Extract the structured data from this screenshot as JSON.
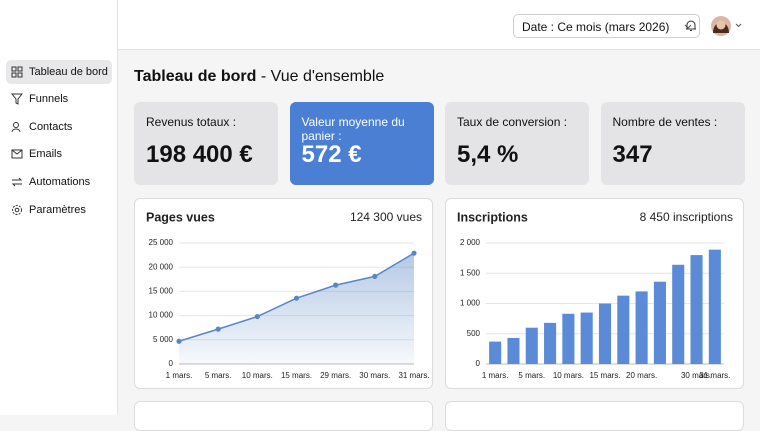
{
  "topbar": {
    "date_filter": "Date : Ce mois (mars 2026)"
  },
  "sidebar": {
    "items": [
      "Tableau de bord",
      "Funnels",
      "Contacts",
      "Emails",
      "Automations",
      "Paramètres"
    ]
  },
  "page": {
    "title": "Tableau de bord",
    "subtitle": "- Vue d'ensemble"
  },
  "kpis": [
    {
      "label": "Revenus totaux :",
      "value": "198 400 €"
    },
    {
      "label": "Valeur moyenne du panier :",
      "value": "572 €"
    },
    {
      "label": "Taux de conversion :",
      "value": "5,4 %"
    },
    {
      "label": "Nombre de ventes :",
      "value": "347"
    }
  ],
  "chart_data": [
    {
      "type": "line",
      "title": "Pages vues",
      "total": "124 300 vues",
      "color": "#5b86c5",
      "categories": [
        "1 mars.",
        "5 mars.",
        "10 mars.",
        "15 mars.",
        "29 mars.",
        "30 mars.",
        "31 mars."
      ],
      "values": [
        4700,
        7200,
        9800,
        13600,
        16300,
        18100,
        22900
      ],
      "ylim": [
        0,
        25000
      ],
      "yticks": [
        0,
        {
          "value": 5000,
          "label": "5 000"
        },
        {
          "value": 10000,
          "label": "10 000"
        },
        {
          "value": 15000,
          "label": "15 000"
        },
        {
          "value": 20000,
          "label": "20 000"
        },
        {
          "value": 25000,
          "label": "25 000"
        }
      ],
      "grid": true
    },
    {
      "type": "bar",
      "title": "Inscriptions",
      "total": "8 450 inscriptions",
      "color": "#5b8bd6",
      "categories": [
        "1 mars.",
        null,
        "5 mars.",
        null,
        "10 mars.",
        null,
        "15 mars.",
        null,
        "20 mars.",
        null,
        null,
        "30 mars.",
        "31 mars."
      ],
      "values": [
        370,
        430,
        600,
        680,
        830,
        850,
        1000,
        1130,
        1200,
        1360,
        1640,
        1800,
        1890
      ],
      "ylim": [
        0,
        2000
      ],
      "yticks": [
        0,
        {
          "value": 500,
          "label": "500"
        },
        {
          "value": 1000,
          "label": "1 000"
        },
        {
          "value": 1500,
          "label": "1 500"
        },
        {
          "value": 2000,
          "label": "2 000"
        }
      ],
      "grid": true
    }
  ]
}
